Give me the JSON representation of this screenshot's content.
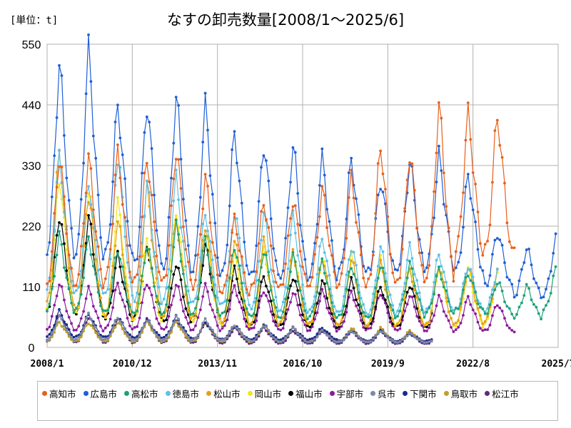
{
  "header": {
    "unit_label": "[単位：t]",
    "title": "なすの卸売数量[2008/1〜2025/6]"
  },
  "chart_data": {
    "type": "line",
    "title": "なすの卸売数量[2008/1〜2025/6]",
    "ylabel": "[単位：t]",
    "xlabel": "",
    "ylim": [
      0,
      550
    ],
    "yticks": [
      0,
      110,
      220,
      330,
      440,
      550
    ],
    "xlim": [
      "2008/1",
      "2025/7"
    ],
    "xticks": [
      "2008/1",
      "2010/12",
      "2013/11",
      "2016/10",
      "2019/9",
      "2022/8",
      "2025/7"
    ],
    "grid": true,
    "legend_position": "bottom",
    "series": [
      {
        "name": "高知市",
        "color": "#e8601c",
        "start": "2008/1",
        "end": "2024/1",
        "peaks": [
          345,
          340,
          350,
          345,
          360,
          305,
          230,
          265,
          270,
          285,
          305,
          365,
          355,
          435,
          420
        ],
        "troughs": [
          90,
          95,
          100,
          95,
          100,
          90,
          85,
          90,
          95,
          100,
          95,
          90,
          95,
          100,
          150
        ]
      },
      {
        "name": "広島市",
        "color": "#1f5fd6",
        "start": "2008/1",
        "end": "2025/6",
        "peaks": [
          510,
          535,
          440,
          445,
          455,
          435,
          390,
          370,
          365,
          340,
          340,
          305,
          335,
          345,
          310,
          210,
          180,
          195
        ],
        "troughs": [
          140,
          135,
          140,
          120,
          115,
          110,
          105,
          105,
          105,
          110,
          115,
          120,
          125,
          130,
          120,
          100,
          85,
          85
        ]
      },
      {
        "name": "高松市",
        "color": "#1aa37a",
        "start": "2008/1",
        "end": "2025/6",
        "peaks": [
          200,
          195,
          180,
          185,
          220,
          195,
          185,
          175,
          165,
          155,
          150,
          150,
          150,
          140,
          135,
          120,
          110,
          140
        ],
        "troughs": [
          55,
          55,
          50,
          50,
          50,
          45,
          45,
          45,
          45,
          45,
          45,
          45,
          50,
          55,
          60,
          55,
          50,
          60
        ]
      },
      {
        "name": "徳島市",
        "color": "#5bc0eb",
        "start": "2008/1",
        "end": "2023/6",
        "peaks": [
          340,
          300,
          350,
          295,
          305,
          245,
          250,
          240,
          235,
          200,
          185,
          180,
          180,
          170,
          150,
          140
        ],
        "troughs": [
          80,
          75,
          70,
          65,
          65,
          60,
          60,
          55,
          50,
          50,
          50,
          50,
          55,
          55,
          60,
          60
        ]
      },
      {
        "name": "松山市",
        "color": "#e6a117",
        "start": "2008/1",
        "end": "2023/6",
        "peaks": [
          355,
          280,
          230,
          285,
          230,
          225,
          195,
          190,
          175,
          165,
          160,
          150,
          140,
          150,
          145,
          135
        ],
        "troughs": [
          50,
          45,
          40,
          40,
          35,
          35,
          30,
          30,
          30,
          30,
          30,
          30,
          30,
          30,
          35,
          40
        ]
      },
      {
        "name": "岡山市",
        "color": "#f4e61c",
        "start": "2008/1",
        "end": "2023/6",
        "peaks": [
          310,
          290,
          260,
          190,
          250,
          210,
          165,
          175,
          175,
          165,
          165,
          160,
          150,
          145,
          140,
          130
        ],
        "troughs": [
          40,
          40,
          35,
          35,
          35,
          30,
          30,
          30,
          30,
          30,
          30,
          30,
          30,
          30,
          30,
          35
        ]
      },
      {
        "name": "福山市",
        "color": "#000000",
        "start": "2008/1",
        "end": "2021/3",
        "peaks": [
          240,
          235,
          165,
          185,
          155,
          185,
          140,
          130,
          130,
          120,
          120,
          110,
          115,
          120
        ],
        "troughs": [
          50,
          45,
          40,
          40,
          35,
          35,
          30,
          30,
          30,
          30,
          30,
          30,
          30,
          30
        ]
      },
      {
        "name": "宇部市",
        "color": "#8b1a9c",
        "start": "2008/1",
        "end": "2024/1",
        "peaks": [
          115,
          105,
          115,
          120,
          115,
          110,
          110,
          105,
          100,
          100,
          100,
          100,
          95,
          90,
          90,
          80,
          60
        ],
        "troughs": [
          25,
          25,
          25,
          25,
          25,
          25,
          25,
          25,
          25,
          25,
          25,
          25,
          25,
          25,
          25,
          25,
          25
        ]
      },
      {
        "name": "呉市",
        "color": "#7a8aa6",
        "start": "2008/1",
        "end": "2021/3",
        "peaks": [
          55,
          60,
          55,
          50,
          55,
          50,
          40,
          40,
          35,
          30,
          30,
          30,
          25,
          20
        ],
        "troughs": [
          10,
          10,
          10,
          10,
          10,
          10,
          10,
          8,
          8,
          8,
          8,
          8,
          8,
          8
        ]
      },
      {
        "name": "下関市",
        "color": "#1b2a8c",
        "start": "2008/1",
        "end": "2021/3",
        "peaks": [
          65,
          60,
          55,
          50,
          55,
          45,
          40,
          40,
          35,
          35,
          30,
          30,
          25,
          25
        ],
        "troughs": [
          15,
          15,
          15,
          15,
          15,
          12,
          12,
          12,
          12,
          12,
          10,
          10,
          10,
          10
        ]
      },
      {
        "name": "鳥取市",
        "color": "#bfa12a",
        "start": "2008/1",
        "end": "2021/3",
        "peaks": [
          45,
          45,
          45,
          45,
          45,
          45,
          40,
          40,
          35,
          35,
          35,
          35,
          30,
          30
        ],
        "troughs": [
          8,
          8,
          8,
          8,
          8,
          8,
          8,
          8,
          8,
          8,
          8,
          8,
          8,
          8
        ]
      },
      {
        "name": "松江市",
        "color": "#5a2a82",
        "start": "2008/1",
        "end": "2021/3",
        "peaks": [
          60,
          55,
          50,
          50,
          50,
          45,
          35,
          35,
          30,
          30,
          30,
          30,
          25,
          25
        ],
        "troughs": [
          5,
          5,
          5,
          5,
          5,
          5,
          5,
          5,
          5,
          5,
          5,
          5,
          5,
          5
        ]
      }
    ]
  }
}
